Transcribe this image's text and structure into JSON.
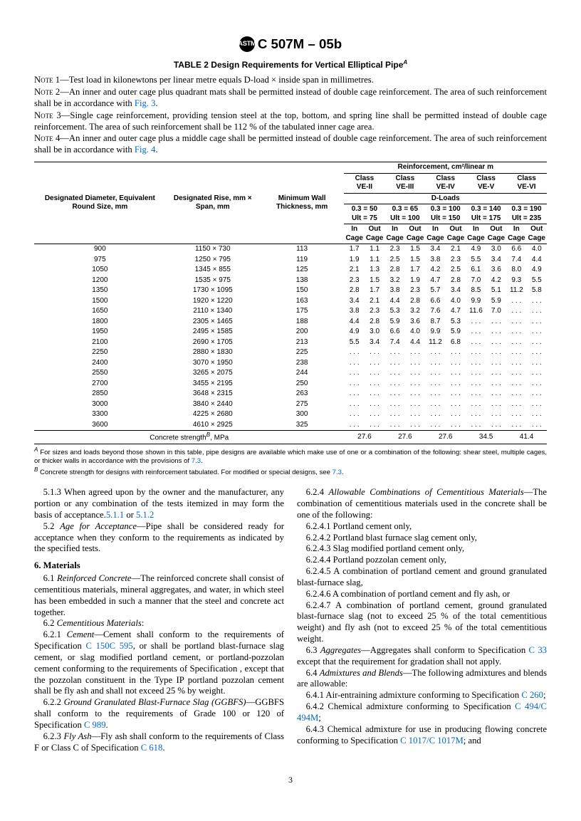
{
  "header": {
    "designation": "C 507M – 05b"
  },
  "table": {
    "title": "TABLE 2  Design Requirements for Vertical Elliptical Pipe",
    "title_sup": "A",
    "notes": [
      {
        "n": "1",
        "text": "Test load in kilonewtons per linear metre equals D-load × inside span in millimetres."
      },
      {
        "n": "2",
        "text": "An inner and outer cage plus quadrant mats shall be permitted instead of double cage reinforcement. The area of such reinforcement shall be in accordance with ",
        "link": "Fig. 3",
        "tail": "."
      },
      {
        "n": "3",
        "text": "Single cage reinforcement, providing tension steel at the top, bottom, and spring line shall be permitted instead of double cage reinforcement. The area of such reinforcement shall be 112 % of the tabulated inner cage area."
      },
      {
        "n": "4",
        "text": "An inner and outer cage plus a middle cage shall be permitted instead of double cage reinforcement. The area of such reinforcement shall be in accordance with ",
        "link": "Fig. 4",
        "tail": "."
      }
    ],
    "col_heads": {
      "size": "Designated Diameter, Equivalent Round Size, mm",
      "rise": "Designated Rise, mm × Span, mm",
      "wall": "Minimum Wall Thickness, mm",
      "reinf": "Reinforcement, cm²/linear m",
      "dloads": "D-Loads",
      "in": "In Cage",
      "out": "Out Cage"
    },
    "classes": [
      {
        "name": "Class VE-II",
        "d": "0.3 = 50",
        "ult": "Ult = 75"
      },
      {
        "name": "Class VE-III",
        "d": "0.3 = 65",
        "ult": "Ult = 100"
      },
      {
        "name": "Class VE-IV",
        "d": "0.3 = 100",
        "ult": "Ult = 150"
      },
      {
        "name": "Class VE-V",
        "d": "0.3 = 140",
        "ult": "Ult = 175"
      },
      {
        "name": "Class VE-VI",
        "d": "0.3 = 190",
        "ult": "Ult = 235"
      }
    ],
    "rows": [
      {
        "size": "900",
        "rise": "1150 × 730",
        "wall": "113",
        "v": [
          "1.7",
          "1.1",
          "2.3",
          "1.5",
          "3.4",
          "2.1",
          "4.9",
          "3.0",
          "6.6",
          "4.0"
        ]
      },
      {
        "size": "975",
        "rise": "1250 × 795",
        "wall": "119",
        "v": [
          "1.9",
          "1.1",
          "2.5",
          "1.5",
          "3.8",
          "2.3",
          "5.5",
          "3.4",
          "7.4",
          "4.4"
        ]
      },
      {
        "size": "1050",
        "rise": "1345 × 855",
        "wall": "125",
        "v": [
          "2.1",
          "1.3",
          "2.8",
          "1.7",
          "4.2",
          "2.5",
          "6.1",
          "3.6",
          "8.0",
          "4.9"
        ]
      },
      {
        "size": "1200",
        "rise": "1535 × 975",
        "wall": "138",
        "v": [
          "2.3",
          "1.5",
          "3.2",
          "1.9",
          "4.7",
          "2.8",
          "7.0",
          "4.2",
          "9.3",
          "5.5"
        ]
      },
      {
        "size": "1350",
        "rise": "1730 × 1095",
        "wall": "150",
        "v": [
          "2.8",
          "1.7",
          "3.8",
          "2.3",
          "5.7",
          "3.4",
          "8.5",
          "5.1",
          "11.2",
          "5.8"
        ]
      },
      {
        "size": "1500",
        "rise": "1920 × 1220",
        "wall": "163",
        "v": [
          "3.4",
          "2.1",
          "4.4",
          "2.8",
          "6.6",
          "4.0",
          "9.9",
          "5.9",
          ". . .",
          ". . ."
        ]
      },
      {
        "size": "1650",
        "rise": "2110 × 1340",
        "wall": "175",
        "v": [
          "3.8",
          "2.3",
          "5.3",
          "3.2",
          "7.6",
          "4.7",
          "11.6",
          "7.0",
          ". . .",
          ". . ."
        ]
      },
      {
        "size": "1800",
        "rise": "2305 × 1465",
        "wall": "188",
        "v": [
          "4.4",
          "2.8",
          "5.9",
          "3.6",
          "8.7",
          "5.3",
          ". . .",
          ". . .",
          ". . .",
          ". . ."
        ]
      },
      {
        "size": "1950",
        "rise": "2495 × 1585",
        "wall": "200",
        "v": [
          "4.9",
          "3.0",
          "6.6",
          "4.0",
          "9.9",
          "5.9",
          ". . .",
          ". . .",
          ". . .",
          ". . ."
        ]
      },
      {
        "size": "2100",
        "rise": "2690 × 1705",
        "wall": "213",
        "v": [
          "5.5",
          "3.4",
          "7.4",
          "4.4",
          "11.2",
          "6.8",
          ". . .",
          ". . .",
          ". . .",
          ". . ."
        ]
      },
      {
        "size": "2250",
        "rise": "2880 × 1830",
        "wall": "225",
        "v": [
          ". . .",
          ". . .",
          ". . .",
          ". . .",
          ". . .",
          ". . .",
          ". . .",
          ". . .",
          ". . .",
          ". . ."
        ]
      },
      {
        "size": "2400",
        "rise": "3070 × 1950",
        "wall": "238",
        "v": [
          ". . .",
          ". . .",
          ". . .",
          ". . .",
          ". . .",
          ". . .",
          ". . .",
          ". . .",
          ". . .",
          ". . ."
        ]
      },
      {
        "size": "2550",
        "rise": "3265 × 2075",
        "wall": "244",
        "v": [
          ". . .",
          ". . .",
          ". . .",
          ". . .",
          ". . .",
          ". . .",
          ". . .",
          ". . .",
          ". . .",
          ". . ."
        ]
      },
      {
        "size": "2700",
        "rise": "3455 × 2195",
        "wall": "250",
        "v": [
          ". . .",
          ". . .",
          ". . .",
          ". . .",
          ". . .",
          ". . .",
          ". . .",
          ". . .",
          ". . .",
          ". . ."
        ]
      },
      {
        "size": "2850",
        "rise": "3648 × 2315",
        "wall": "263",
        "v": [
          ". . .",
          ". . .",
          ". . .",
          ". . .",
          ". . .",
          ". . .",
          ". . .",
          ". . .",
          ". . .",
          ". . ."
        ]
      },
      {
        "size": "3000",
        "rise": "3840 × 2440",
        "wall": "275",
        "v": [
          ". . .",
          ". . .",
          ". . .",
          ". . .",
          ". . .",
          ". . .",
          ". . .",
          ". . .",
          ". . .",
          ". . ."
        ]
      },
      {
        "size": "3300",
        "rise": "4225 × 2680",
        "wall": "300",
        "v": [
          ". . .",
          ". . .",
          ". . .",
          ". . .",
          ". . .",
          ". . .",
          ". . .",
          ". . .",
          ". . .",
          ". . ."
        ]
      },
      {
        "size": "3600",
        "rise": "4610 × 2925",
        "wall": "325",
        "v": [
          ". . .",
          ". . .",
          ". . .",
          ". . .",
          ". . .",
          ". . .",
          ". . .",
          ". . .",
          ". . .",
          ". . ."
        ]
      }
    ],
    "concrete_row": {
      "label": "Concrete strength",
      "sup": "B",
      "unit": ", MPa",
      "v": [
        "27.6",
        "27.6",
        "27.6",
        "34.5",
        "41.4"
      ]
    },
    "footnotes": [
      {
        "sup": "A",
        "text": " For sizes and loads beyond those shown in this table, pipe designs are available which make use of one or a combination of the following: shear steel, multiple cages, or thicker walls in accordance with the provisions of ",
        "link": "7.3",
        "tail": "."
      },
      {
        "sup": "B",
        "text": " Concrete strength for designs with reinforcement tabulated. For modified or special designs, see ",
        "link": "7.3",
        "tail": "."
      }
    ]
  },
  "body": {
    "left": [
      {
        "t": "p",
        "text": "5.1.3 When agreed upon by the owner and the manufacturer, any portion or any combination of the tests itemized in ",
        "link": "5.1.1",
        "mid": " or ",
        "link2": "5.1.2",
        "tail": " may form the basis of acceptance."
      },
      {
        "t": "p",
        "text": "5.2 ",
        "em": "Age for Acceptance",
        "tail": "—Pipe shall be considered ready for acceptance when they conform to the requirements as indicated by the specified tests."
      },
      {
        "t": "h",
        "text": "6. Materials"
      },
      {
        "t": "p",
        "text": "6.1 ",
        "em": "Reinforced Concrete",
        "tail": "—The reinforced concrete shall consist of cementitious materials, mineral aggregates, and water, in which steel has been embedded in such a manner that the steel and concrete act together."
      },
      {
        "t": "p",
        "text": "6.2 ",
        "em": "Cementitious Materials",
        "tail": ":"
      },
      {
        "t": "p",
        "text": "6.2.1 ",
        "em": "Cement",
        "tail": "—Cement shall conform to the requirements of Specification ",
        "link": "C 150",
        "tail2": ", or shall be portland blast-furnace slag cement, or slag modified portland cement, or portland-pozzolan cement conforming to the requirements of Specification ",
        "link2": "C 595",
        "tail3": ", except that the pozzolan constituent in the Type IP portland pozzolan cement shall be fly ash and shall not exceed 25 % by weight."
      },
      {
        "t": "p",
        "text": "6.2.2 ",
        "em": "Ground Granulated Blast-Furnace Slag (GGBFS)",
        "tail": "—GGBFS shall conform to the requirements of Grade 100 or 120 of Specification ",
        "link": "C 989",
        "tail2": "."
      },
      {
        "t": "p",
        "text": "6.2.3 ",
        "em": "Fly Ash",
        "tail": "—Fly ash shall conform to the requirements of Class F or Class C of Specification ",
        "link": "C 618",
        "tail2": "."
      }
    ],
    "right": [
      {
        "t": "p",
        "text": "6.2.4 ",
        "em": "Allowable Combinations of Cementitious Materials",
        "tail": "—The combination of cementitious materials used in the concrete shall be one of the following:"
      },
      {
        "t": "p",
        "text": "6.2.4.1 Portland cement only,"
      },
      {
        "t": "p",
        "text": "6.2.4.2 Portland blast furnace slag cement only,"
      },
      {
        "t": "p",
        "text": "6.2.4.3 Slag modified portland cement only,"
      },
      {
        "t": "p",
        "text": "6.2.4.4 Portland pozzolan cement only,"
      },
      {
        "t": "p",
        "text": "6.2.4.5 A combination of portland cement and ground granulated blast-furnace slag,"
      },
      {
        "t": "p",
        "text": "6.2.4.6 A combination of portland cement and fly ash, or"
      },
      {
        "t": "p",
        "text": "6.2.4.7 A combination of portland cement, ground granulated blast-furnace slag (not to exceed 25 % of the total cementitious weight) and fly ash (not to exceed 25 % of the total cementitious weight."
      },
      {
        "t": "p",
        "text": "6.3 ",
        "em": "Aggregates",
        "tail": "—Aggregates shall conform to Specification ",
        "link": "C 33",
        "tail2": " except that the requirement for gradation shall not apply."
      },
      {
        "t": "p",
        "text": "6.4 ",
        "em": "Admixtures and Blends",
        "tail": "—The following admixtures and blends are allowable:"
      },
      {
        "t": "p",
        "text": "6.4.1 Air-entraining admixture conforming to Specification ",
        "link": "C 260",
        "tail2": ";"
      },
      {
        "t": "p",
        "text": "6.4.2 Chemical admixture conforming to Specification ",
        "link": "C 494/C 494M",
        "tail2": ";"
      },
      {
        "t": "p",
        "text": "6.4.3 Chemical admixture for use in producing flowing concrete conforming to Specification ",
        "link": "C 1017/C 1017M",
        "tail2": "; and"
      }
    ]
  },
  "page": "3"
}
